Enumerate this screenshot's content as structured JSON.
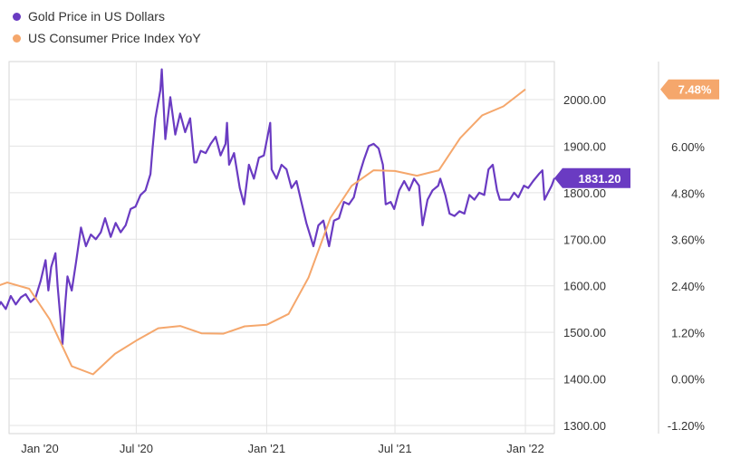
{
  "chart_data": {
    "type": "line",
    "title": "",
    "x_tick_labels": [
      "Jan '20",
      "Jul '20",
      "Jan '21",
      "Jul '21",
      "Jan '22"
    ],
    "left_axis": {
      "label": "",
      "ticks": [
        "2000.00",
        "1900.00",
        "1800.00",
        "1700.00",
        "1600.00",
        "1500.00",
        "1400.00",
        "1300.00"
      ],
      "range": [
        1300,
        2080
      ]
    },
    "right_axis": {
      "label": "",
      "ticks": [
        "6.00%",
        "4.80%",
        "3.60%",
        "2.40%",
        "1.20%",
        "0.00%",
        "-1.20%"
      ],
      "range": [
        -1.2,
        8.0
      ]
    },
    "grid": true,
    "legend_position": "top-left",
    "series": [
      {
        "name": "Gold Price in US Dollars",
        "axis": "left",
        "color": "#6a3bc2",
        "last_value_label": "1831.20",
        "points": [
          [
            "2019-12-01",
            1508
          ],
          [
            "2019-12-03",
            1555
          ],
          [
            "2019-12-09",
            1560
          ],
          [
            "2019-12-16",
            1545
          ],
          [
            "2019-12-23",
            1565
          ],
          [
            "2019-12-30",
            1550
          ],
          [
            "2020-01-06",
            1578
          ],
          [
            "2020-01-13",
            1560
          ],
          [
            "2020-01-20",
            1575
          ],
          [
            "2020-01-27",
            1582
          ],
          [
            "2020-02-03",
            1565
          ],
          [
            "2020-02-10",
            1575
          ],
          [
            "2020-02-17",
            1610
          ],
          [
            "2020-02-24",
            1655
          ],
          [
            "2020-02-28",
            1590
          ],
          [
            "2020-03-03",
            1640
          ],
          [
            "2020-03-09",
            1670
          ],
          [
            "2020-03-12",
            1600
          ],
          [
            "2020-03-16",
            1530
          ],
          [
            "2020-03-19",
            1475
          ],
          [
            "2020-03-23",
            1565
          ],
          [
            "2020-03-26",
            1620
          ],
          [
            "2020-04-01",
            1590
          ],
          [
            "2020-04-07",
            1650
          ],
          [
            "2020-04-14",
            1725
          ],
          [
            "2020-04-21",
            1685
          ],
          [
            "2020-04-28",
            1710
          ],
          [
            "2020-05-05",
            1700
          ],
          [
            "2020-05-12",
            1715
          ],
          [
            "2020-05-18",
            1745
          ],
          [
            "2020-05-26",
            1705
          ],
          [
            "2020-06-02",
            1735
          ],
          [
            "2020-06-09",
            1715
          ],
          [
            "2020-06-16",
            1730
          ],
          [
            "2020-06-23",
            1765
          ],
          [
            "2020-06-30",
            1770
          ],
          [
            "2020-07-07",
            1795
          ],
          [
            "2020-07-14",
            1805
          ],
          [
            "2020-07-21",
            1840
          ],
          [
            "2020-07-24",
            1895
          ],
          [
            "2020-07-28",
            1960
          ],
          [
            "2020-08-04",
            2020
          ],
          [
            "2020-08-06",
            2065
          ],
          [
            "2020-08-11",
            1915
          ],
          [
            "2020-08-18",
            2005
          ],
          [
            "2020-08-25",
            1925
          ],
          [
            "2020-09-01",
            1970
          ],
          [
            "2020-09-08",
            1930
          ],
          [
            "2020-09-15",
            1960
          ],
          [
            "2020-09-21",
            1865
          ],
          [
            "2020-09-24",
            1865
          ],
          [
            "2020-09-30",
            1890
          ],
          [
            "2020-10-07",
            1885
          ],
          [
            "2020-10-14",
            1905
          ],
          [
            "2020-10-21",
            1920
          ],
          [
            "2020-10-28",
            1880
          ],
          [
            "2020-11-04",
            1905
          ],
          [
            "2020-11-06",
            1950
          ],
          [
            "2020-11-09",
            1860
          ],
          [
            "2020-11-16",
            1885
          ],
          [
            "2020-11-24",
            1810
          ],
          [
            "2020-11-30",
            1775
          ],
          [
            "2020-12-07",
            1860
          ],
          [
            "2020-12-14",
            1830
          ],
          [
            "2020-12-21",
            1875
          ],
          [
            "2020-12-28",
            1880
          ],
          [
            "2021-01-06",
            1950
          ],
          [
            "2021-01-08",
            1850
          ],
          [
            "2021-01-15",
            1830
          ],
          [
            "2021-01-22",
            1860
          ],
          [
            "2021-01-29",
            1850
          ],
          [
            "2021-02-05",
            1810
          ],
          [
            "2021-02-12",
            1825
          ],
          [
            "2021-02-19",
            1780
          ],
          [
            "2021-02-26",
            1735
          ],
          [
            "2021-03-05",
            1700
          ],
          [
            "2021-03-08",
            1685
          ],
          [
            "2021-03-15",
            1730
          ],
          [
            "2021-03-22",
            1740
          ],
          [
            "2021-03-30",
            1685
          ],
          [
            "2021-04-06",
            1740
          ],
          [
            "2021-04-13",
            1745
          ],
          [
            "2021-04-20",
            1780
          ],
          [
            "2021-04-27",
            1775
          ],
          [
            "2021-05-04",
            1790
          ],
          [
            "2021-05-11",
            1835
          ],
          [
            "2021-05-18",
            1870
          ],
          [
            "2021-05-25",
            1900
          ],
          [
            "2021-06-01",
            1905
          ],
          [
            "2021-06-08",
            1895
          ],
          [
            "2021-06-14",
            1860
          ],
          [
            "2021-06-18",
            1775
          ],
          [
            "2021-06-25",
            1780
          ],
          [
            "2021-06-30",
            1765
          ],
          [
            "2021-07-07",
            1805
          ],
          [
            "2021-07-14",
            1825
          ],
          [
            "2021-07-21",
            1805
          ],
          [
            "2021-07-28",
            1830
          ],
          [
            "2021-08-04",
            1815
          ],
          [
            "2021-08-09",
            1730
          ],
          [
            "2021-08-16",
            1785
          ],
          [
            "2021-08-23",
            1805
          ],
          [
            "2021-08-31",
            1815
          ],
          [
            "2021-09-03",
            1830
          ],
          [
            "2021-09-10",
            1795
          ],
          [
            "2021-09-16",
            1755
          ],
          [
            "2021-09-23",
            1750
          ],
          [
            "2021-09-30",
            1760
          ],
          [
            "2021-10-07",
            1755
          ],
          [
            "2021-10-14",
            1795
          ],
          [
            "2021-10-21",
            1785
          ],
          [
            "2021-10-28",
            1800
          ],
          [
            "2021-11-04",
            1795
          ],
          [
            "2021-11-10",
            1850
          ],
          [
            "2021-11-16",
            1860
          ],
          [
            "2021-11-22",
            1805
          ],
          [
            "2021-11-26",
            1785
          ],
          [
            "2021-12-03",
            1785
          ],
          [
            "2021-12-10",
            1785
          ],
          [
            "2021-12-16",
            1800
          ],
          [
            "2021-12-22",
            1790
          ],
          [
            "2021-12-30",
            1815
          ],
          [
            "2022-01-05",
            1810
          ],
          [
            "2022-01-12",
            1825
          ],
          [
            "2022-01-20",
            1840
          ],
          [
            "2022-01-25",
            1848
          ],
          [
            "2022-01-28",
            1785
          ],
          [
            "2022-02-02",
            1800
          ],
          [
            "2022-02-07",
            1815
          ],
          [
            "2022-02-11",
            1831.2
          ]
        ]
      },
      {
        "name": "US Consumer Price Index YoY",
        "axis": "right",
        "color": "#f5a76c",
        "last_value_label": "7.48%",
        "points": [
          [
            "2019-12-01",
            2.29
          ],
          [
            "2020-01-01",
            2.49
          ],
          [
            "2020-02-01",
            2.33
          ],
          [
            "2020-03-01",
            1.54
          ],
          [
            "2020-04-01",
            0.33
          ],
          [
            "2020-05-01",
            0.12
          ],
          [
            "2020-06-01",
            0.65
          ],
          [
            "2020-07-01",
            0.99
          ],
          [
            "2020-08-01",
            1.31
          ],
          [
            "2020-09-01",
            1.37
          ],
          [
            "2020-10-01",
            1.18
          ],
          [
            "2020-11-01",
            1.17
          ],
          [
            "2020-12-01",
            1.36
          ],
          [
            "2021-01-01",
            1.4
          ],
          [
            "2021-02-01",
            1.68
          ],
          [
            "2021-03-01",
            2.62
          ],
          [
            "2021-04-01",
            4.16
          ],
          [
            "2021-05-01",
            4.99
          ],
          [
            "2021-06-01",
            5.39
          ],
          [
            "2021-07-01",
            5.37
          ],
          [
            "2021-08-01",
            5.25
          ],
          [
            "2021-09-01",
            5.39
          ],
          [
            "2021-10-01",
            6.22
          ],
          [
            "2021-11-01",
            6.81
          ],
          [
            "2021-12-01",
            7.04
          ],
          [
            "2022-01-01",
            7.48
          ]
        ]
      }
    ]
  }
}
